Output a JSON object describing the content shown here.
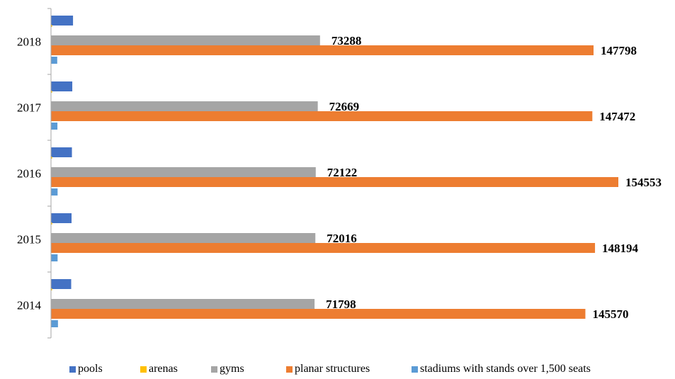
{
  "chart_data": {
    "type": "bar",
    "orientation": "horizontal",
    "categories": [
      "2014",
      "2015",
      "2016",
      "2017",
      "2018"
    ],
    "series": [
      {
        "name": "pools",
        "color": "#4472C4",
        "values": [
          5500,
          5600,
          5700,
          5800,
          6000
        ]
      },
      {
        "name": "arenas",
        "color": "#FFC000",
        "values": [
          300,
          300,
          300,
          300,
          300
        ]
      },
      {
        "name": "gyms",
        "color": "#A5A5A5",
        "values": [
          71798,
          72016,
          72122,
          72669,
          73288
        ]
      },
      {
        "name": "planar structures",
        "color": "#ED7D31",
        "values": [
          145570,
          148194,
          154553,
          147472,
          147798
        ]
      },
      {
        "name": "stadiums with stands over 1,500 seats",
        "color": "#5B9BD5",
        "values": [
          1900,
          1800,
          1800,
          1750,
          1700
        ]
      }
    ],
    "data_labels": {
      "gyms": [
        "71798",
        "72016",
        "72122",
        "72669",
        "73288"
      ],
      "planar structures": [
        "145570",
        "148194",
        "154553",
        "147472",
        "147798"
      ]
    },
    "xlim": [
      0,
      160000
    ],
    "grid": false,
    "legend_position": "bottom"
  },
  "legend": {
    "items": [
      "pools",
      "arenas",
      "gyms",
      "planar structures",
      "stadiums with stands over 1,500 seats"
    ]
  }
}
